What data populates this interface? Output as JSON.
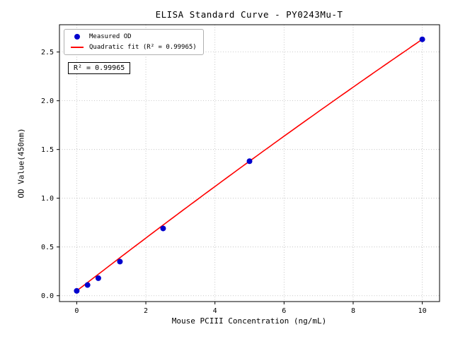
{
  "chart_data": {
    "type": "scatter",
    "title": "ELISA Standard Curve - PY0243Mu-T",
    "xlabel": "Mouse PCIII Concentration (ng/mL)",
    "ylabel": "OD Value(450nm)",
    "xlim": [
      -0.5,
      10.5
    ],
    "ylim": [
      -0.06,
      2.78
    ],
    "xticks": [
      0,
      2,
      4,
      6,
      8,
      10
    ],
    "xtick_labels": [
      "0",
      "2",
      "4",
      "6",
      "8",
      "10"
    ],
    "yticks": [
      0.0,
      0.5,
      1.0,
      1.5,
      2.0,
      2.5
    ],
    "ytick_labels": [
      "0.0",
      "0.5",
      "1.0",
      "1.5",
      "2.0",
      "2.5"
    ],
    "grid": true,
    "legend_position": "upper left",
    "annotation": "R² = 0.99965",
    "colors": {
      "scatter": "#0000cd",
      "fit_line": "#ff0000",
      "grid": "#b8b8b8",
      "frame": "#000000"
    },
    "series": [
      {
        "name": "Measured OD",
        "type": "scatter",
        "color": "#0000cd",
        "x": [
          0,
          0.3125,
          0.625,
          1.25,
          2.5,
          5,
          10
        ],
        "y": [
          0.05,
          0.11,
          0.18,
          0.35,
          0.69,
          1.38,
          2.63
        ]
      },
      {
        "name": "Quadratic fit (R² = 0.99965)",
        "type": "line",
        "color": "#ff0000",
        "fit": {
          "kind": "quadratic",
          "coefficients": {
            "a": -0.0016,
            "b": 0.274,
            "c": 0.05
          },
          "r_squared": 0.99965,
          "x_range": [
            0,
            10
          ]
        }
      }
    ]
  }
}
